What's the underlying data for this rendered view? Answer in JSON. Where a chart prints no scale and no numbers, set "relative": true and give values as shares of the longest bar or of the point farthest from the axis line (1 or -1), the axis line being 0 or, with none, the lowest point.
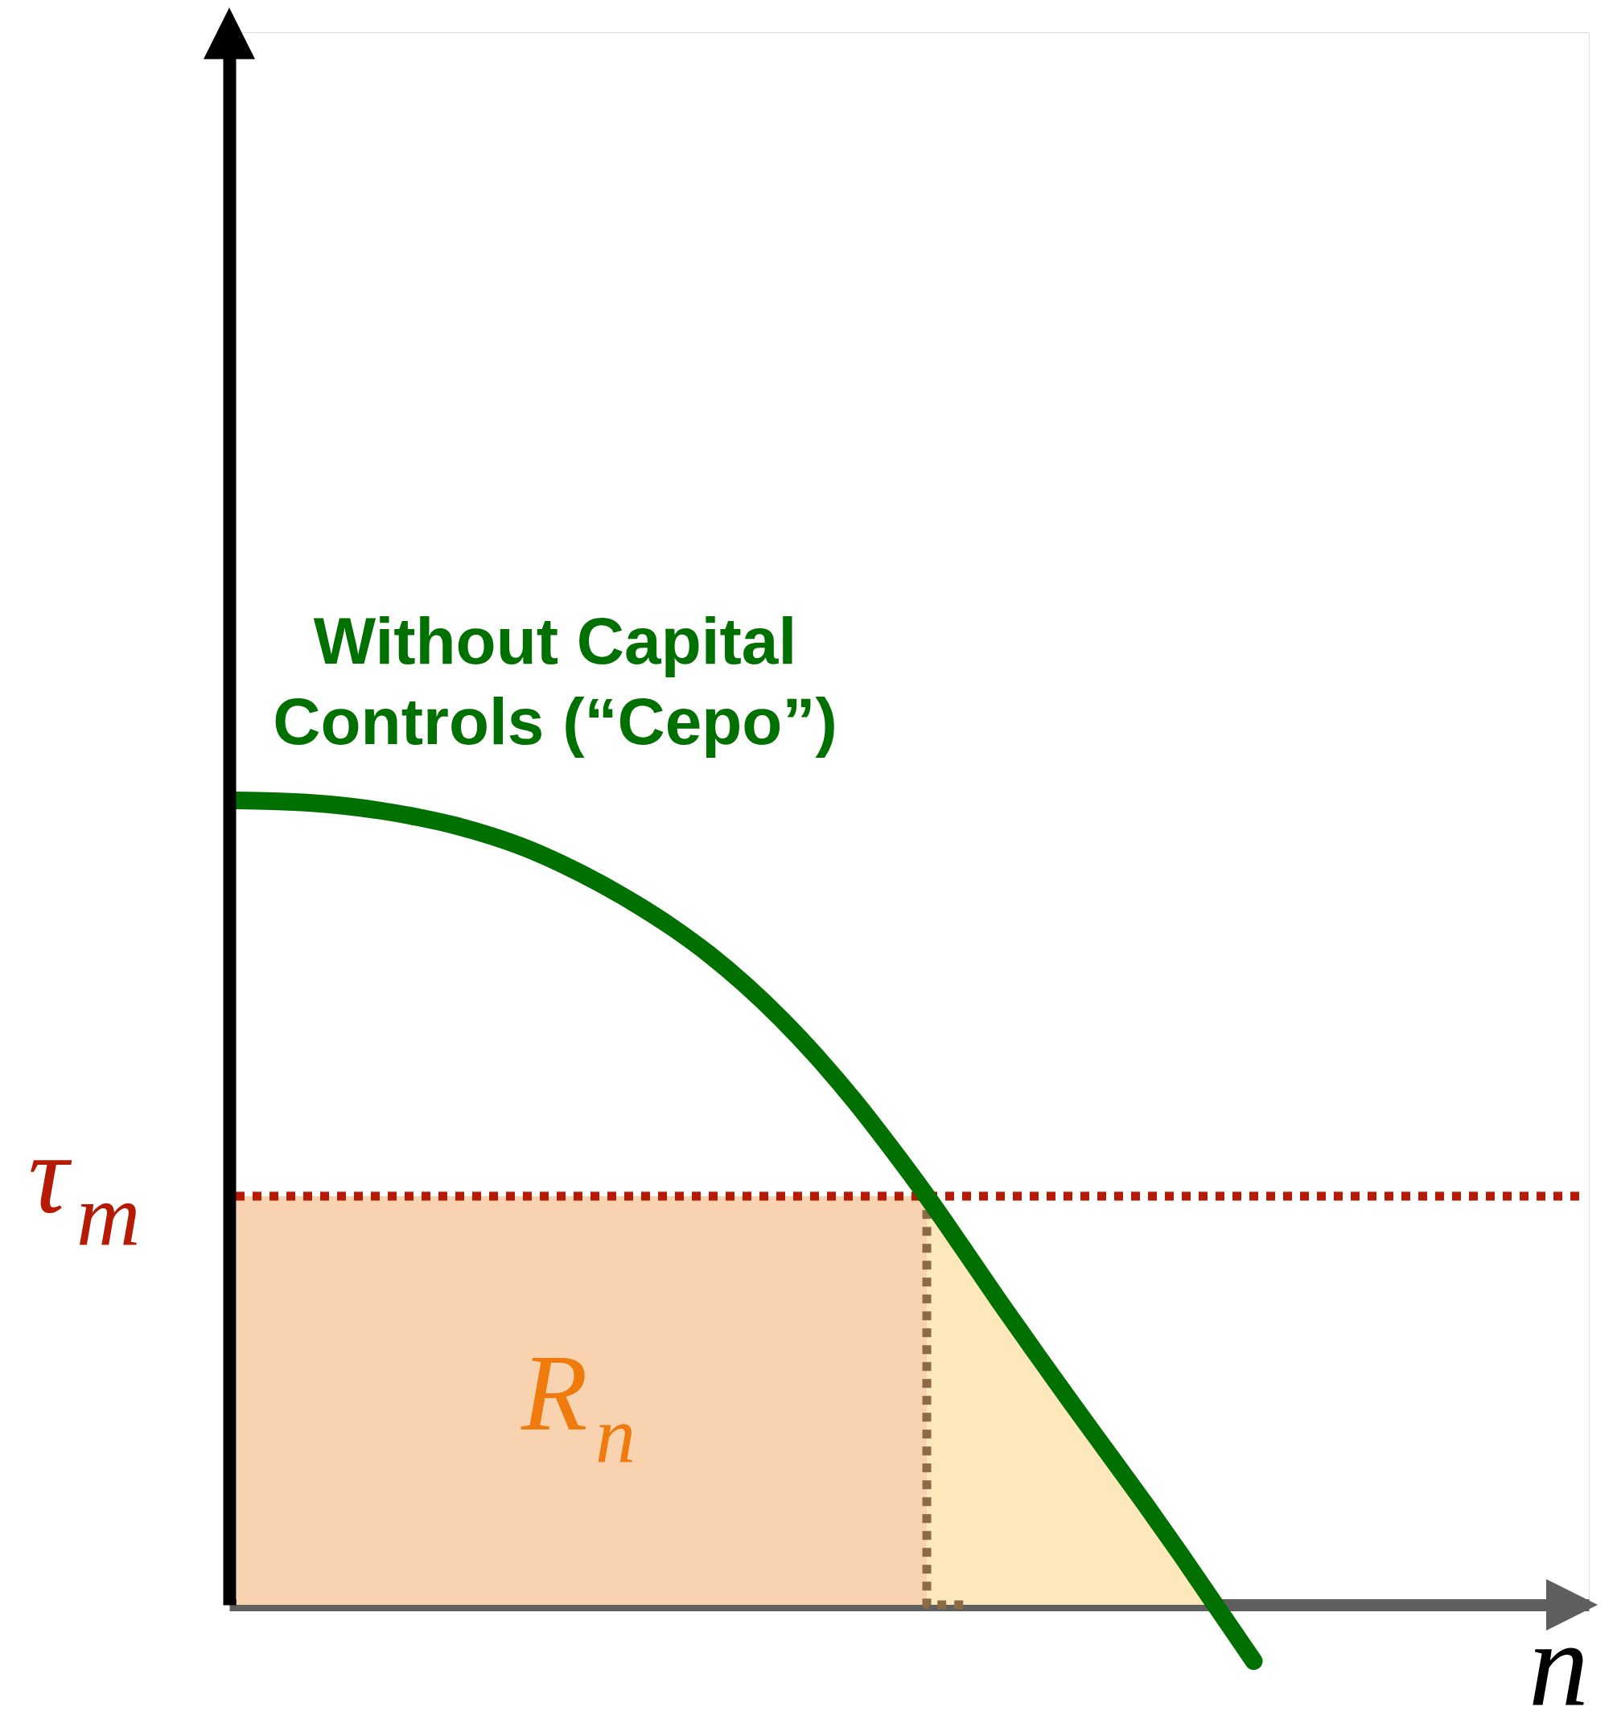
{
  "chart_data": {
    "type": "line",
    "relative": true,
    "xlabel": "n",
    "categories": [
      null,
      null,
      null,
      null,
      null,
      null,
      null,
      null,
      null,
      null,
      null,
      null,
      null,
      null,
      null,
      null,
      null,
      null,
      null,
      null,
      null,
      null,
      null,
      null,
      null,
      null,
      null,
      null,
      null
    ],
    "series": [
      {
        "type": "area",
        "name": "R$_{n}$",
        "color": "#f9d3b0",
        "values": [
          0.508,
          0.508,
          0.508,
          0.508,
          0.508,
          0.508,
          0.508,
          0.508,
          0.508,
          0.508,
          0.508,
          0.508,
          0.508,
          0.508,
          0.508,
          0.508,
          0.508,
          0.508,
          0.508,
          0.508,
          null,
          null,
          null,
          null,
          null,
          null,
          null,
          null,
          null
        ]
      },
      {
        "type": "area",
        "color": "#fde8bb",
        "values": [
          null,
          null,
          null,
          null,
          null,
          null,
          null,
          null,
          null,
          null,
          null,
          null,
          null,
          null,
          null,
          null,
          null,
          null,
          null,
          0.508,
          0.446,
          0.384,
          0.322,
          0.26,
          0.197,
          0.135,
          0.073,
          0.011,
          null
        ]
      },
      {
        "type": "step",
        "color": "#8c6a45",
        "line_style": "dotted",
        "values": [
          null,
          null,
          null,
          null,
          null,
          null,
          null,
          null,
          null,
          null,
          null,
          null,
          null,
          null,
          null,
          null,
          null,
          null,
          null,
          0.508,
          0,
          null,
          null,
          null,
          null,
          null,
          null,
          null,
          null
        ]
      },
      {
        "name": "Without Capital Controls (“Cepo”)",
        "color": "#007000",
        "values": [
          1,
          0.999,
          0.997,
          0.993,
          0.987,
          0.979,
          0.969,
          0.956,
          0.94,
          0.92,
          0.897,
          0.871,
          0.842,
          0.809,
          0.771,
          0.728,
          0.68,
          0.627,
          0.569,
          0.508,
          0.443,
          0.377,
          0.313,
          0.25,
          0.188,
          0.126,
          0.062,
          -0.004,
          -0.07
        ]
      }
    ],
    "ref_lines": [
      {
        "axis": "y",
        "value": 0.508,
        "label": "τ$_{m}$",
        "color": "#b41a04",
        "line_style": "dotted"
      }
    ]
  }
}
